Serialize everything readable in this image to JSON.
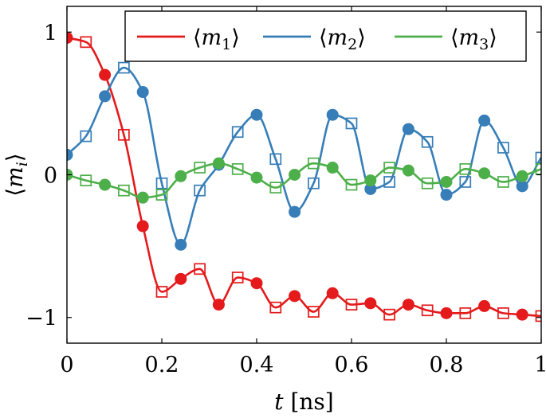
{
  "chart_data": {
    "type": "line",
    "xlabel": "t [ns]",
    "ylabel": "⟨m_i⟩",
    "xlim": [
      0,
      1
    ],
    "ylim": [
      -1.18,
      1.18
    ],
    "x_ticks": [
      "0",
      "0.2",
      "0.4",
      "0.6",
      "0.8",
      "1"
    ],
    "y_ticks": [
      "−1",
      "0",
      "1"
    ],
    "grid": false,
    "legend_position": "top-right",
    "series": [
      {
        "name": "⟨m₁⟩",
        "legend_math": {
          "base": "m",
          "sub": "1"
        },
        "color": "#e41a1c",
        "points_circle": [
          [
            0,
            0.96
          ],
          [
            0.08,
            0.7
          ],
          [
            0.16,
            -0.36
          ],
          [
            0.24,
            -0.73
          ],
          [
            0.32,
            -0.91
          ],
          [
            0.4,
            -0.76
          ],
          [
            0.48,
            -0.85
          ],
          [
            0.56,
            -0.83
          ],
          [
            0.64,
            -0.9
          ],
          [
            0.72,
            -0.91
          ],
          [
            0.8,
            -0.97
          ],
          [
            0.88,
            -0.92
          ],
          [
            0.96,
            -0.98
          ]
        ],
        "points_square": [
          [
            0.04,
            0.93
          ],
          [
            0.12,
            0.28
          ],
          [
            0.2,
            -0.82
          ],
          [
            0.28,
            -0.66
          ],
          [
            0.36,
            -0.72
          ],
          [
            0.44,
            -0.93
          ],
          [
            0.52,
            -0.96
          ],
          [
            0.6,
            -0.91
          ],
          [
            0.68,
            -0.98
          ],
          [
            0.76,
            -0.95
          ],
          [
            0.84,
            -0.97
          ],
          [
            0.92,
            -0.97
          ],
          [
            1.0,
            -0.99
          ]
        ]
      },
      {
        "name": "⟨m₂⟩",
        "legend_math": {
          "base": "m",
          "sub": "2"
        },
        "color": "#377eb8",
        "points_circle": [
          [
            0,
            0.14
          ],
          [
            0.08,
            0.55
          ],
          [
            0.16,
            0.58
          ],
          [
            0.24,
            -0.49
          ],
          [
            0.32,
            0.07
          ],
          [
            0.4,
            0.42
          ],
          [
            0.48,
            -0.26
          ],
          [
            0.56,
            0.42
          ],
          [
            0.64,
            -0.1
          ],
          [
            0.72,
            0.32
          ],
          [
            0.8,
            -0.14
          ],
          [
            0.88,
            0.38
          ],
          [
            0.96,
            -0.08
          ]
        ],
        "points_square": [
          [
            0.04,
            0.27
          ],
          [
            0.12,
            0.75
          ],
          [
            0.2,
            -0.06
          ],
          [
            0.28,
            -0.11
          ],
          [
            0.36,
            0.3
          ],
          [
            0.44,
            0.11
          ],
          [
            0.52,
            -0.06
          ],
          [
            0.6,
            0.36
          ],
          [
            0.68,
            -0.05
          ],
          [
            0.76,
            0.23
          ],
          [
            0.84,
            -0.05
          ],
          [
            0.92,
            0.19
          ],
          [
            1.0,
            0.12
          ]
        ]
      },
      {
        "name": "⟨m₃⟩",
        "legend_math": {
          "base": "m",
          "sub": "3"
        },
        "color": "#4daf4a",
        "points_circle": [
          [
            0,
            0.0
          ],
          [
            0.08,
            -0.07
          ],
          [
            0.16,
            -0.16
          ],
          [
            0.24,
            -0.01
          ],
          [
            0.32,
            0.08
          ],
          [
            0.4,
            -0.02
          ],
          [
            0.48,
            0.0
          ],
          [
            0.56,
            0.05
          ],
          [
            0.64,
            -0.04
          ],
          [
            0.72,
            0.03
          ],
          [
            0.8,
            -0.05
          ],
          [
            0.88,
            0.01
          ],
          [
            0.96,
            -0.01
          ]
        ],
        "points_square": [
          [
            0.04,
            -0.04
          ],
          [
            0.12,
            -0.11
          ],
          [
            0.2,
            -0.14
          ],
          [
            0.28,
            0.05
          ],
          [
            0.36,
            0.04
          ],
          [
            0.44,
            -0.09
          ],
          [
            0.52,
            0.08
          ],
          [
            0.6,
            -0.07
          ],
          [
            0.68,
            0.05
          ],
          [
            0.76,
            -0.06
          ],
          [
            0.84,
            0.04
          ],
          [
            0.92,
            -0.05
          ],
          [
            1.0,
            0.04
          ]
        ]
      }
    ]
  }
}
